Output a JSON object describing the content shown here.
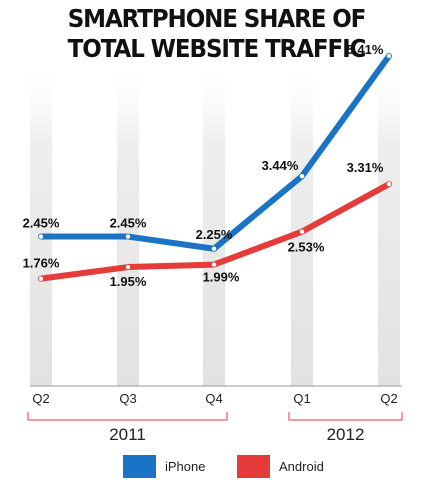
{
  "chart_data": {
    "type": "line",
    "title_line1": "SMARTPHONE SHARE OF",
    "title_line2": "TOTAL WEBSITE TRAFFIC",
    "categories": [
      "Q2",
      "Q3",
      "Q4",
      "Q1",
      "Q2"
    ],
    "year_groups": [
      {
        "label": "2011",
        "from": 0,
        "to": 2
      },
      {
        "label": "2012",
        "from": 3,
        "to": 4
      }
    ],
    "ylim": [
      0,
      6
    ],
    "series": [
      {
        "name": "iPhone",
        "color": "#1a73c4",
        "values": [
          2.45,
          2.45,
          2.25,
          3.44,
          5.41
        ],
        "labels": [
          "2.45%",
          "2.45%",
          "2.25%",
          "3.44%",
          "5.41%"
        ]
      },
      {
        "name": "Android",
        "color": "#e63b3b",
        "values": [
          1.76,
          1.95,
          1.99,
          2.53,
          3.31
        ],
        "labels": [
          "1.76%",
          "1.95%",
          "1.99%",
          "2.53%",
          "3.31%"
        ]
      }
    ],
    "legend_position": "bottom"
  }
}
